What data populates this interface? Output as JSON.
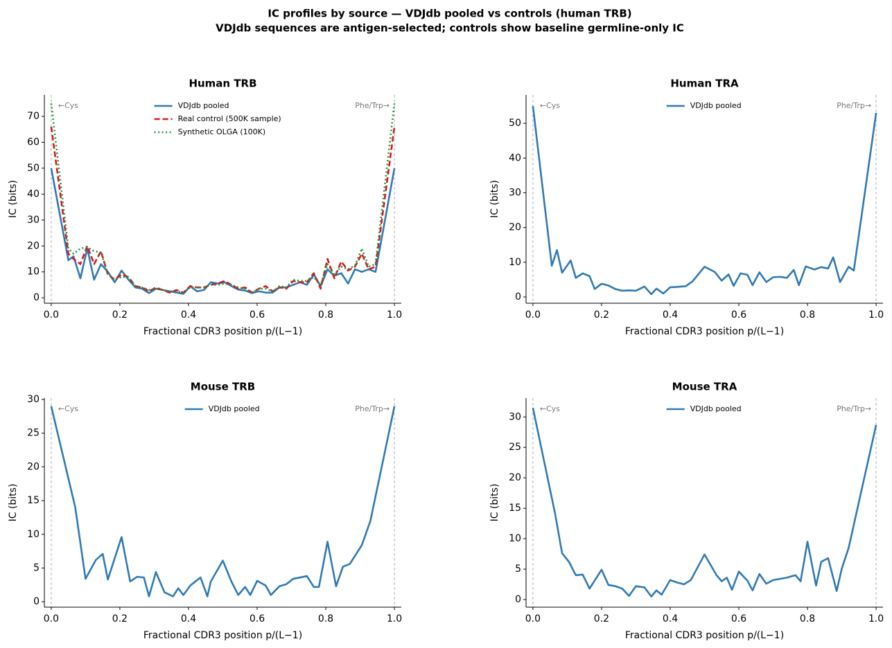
{
  "title": "IC profiles by source — VDJdb pooled vs controls (human TRB)",
  "subtitle": "VDJdb sequences are antigen-selected; controls show baseline germline-only IC",
  "chart_data": [
    {
      "type": "line",
      "title": "Human TRB",
      "xlabel": "Fractional CDR3 position  p/(L−1)",
      "ylabel": "IC (bits)",
      "annotations": [
        "←Cys",
        "Phe/Trp→"
      ],
      "vlines": [
        0,
        1
      ],
      "legend": "upper center",
      "xlim": [
        -0.02,
        1.02
      ],
      "ylim": [
        -2.1,
        78.3
      ],
      "xticks": [
        {
          "value": 0,
          "label": "0.0"
        },
        0.2,
        0.4,
        0.6,
        0.8,
        {
          "value": 1,
          "label": "1.0"
        }
      ],
      "yticks": [
        0,
        10,
        20,
        30,
        40,
        50,
        60,
        70
      ],
      "x": [
        0,
        0.05,
        0.065,
        0.085,
        0.105,
        0.125,
        0.145,
        0.165,
        0.185,
        0.205,
        0.225,
        0.245,
        0.265,
        0.285,
        0.305,
        0.325,
        0.345,
        0.365,
        0.385,
        0.405,
        0.425,
        0.445,
        0.465,
        0.485,
        0.505,
        0.525,
        0.545,
        0.565,
        0.585,
        0.605,
        0.625,
        0.645,
        0.665,
        0.685,
        0.705,
        0.725,
        0.745,
        0.765,
        0.785,
        0.805,
        0.825,
        0.845,
        0.865,
        0.885,
        0.905,
        0.925,
        0.945,
        1.0
      ],
      "series": [
        {
          "name": "VDJdb pooled",
          "color": "#2f79b5",
          "linestyle": "solid",
          "values": [
            50,
            14.5,
            16,
            7.5,
            19,
            7,
            13,
            10,
            6,
            10.5,
            7,
            4,
            3.5,
            1.8,
            3.5,
            3,
            2.5,
            2,
            1.5,
            4.5,
            2.5,
            3,
            6,
            5.5,
            6,
            4.5,
            3.2,
            2.8,
            1.8,
            2.5,
            2,
            2,
            4,
            4,
            5,
            6,
            5,
            9,
            4.5,
            11,
            8.5,
            9.5,
            5.5,
            11,
            10,
            11,
            10,
            50
          ]
        },
        {
          "name": "Real control (500K sample)",
          "color": "#d7191c",
          "linestyle": "dashed",
          "values": [
            66,
            17,
            15,
            13,
            20,
            13,
            18,
            9,
            7,
            9,
            8,
            4.5,
            4,
            2.5,
            4,
            3,
            2,
            3,
            2,
            4.5,
            4,
            4,
            5,
            5.5,
            6.5,
            5,
            3.5,
            4,
            2,
            3.5,
            4.5,
            2.5,
            4,
            3.5,
            6.5,
            6,
            6,
            9.5,
            3.5,
            15,
            7.5,
            14,
            10.5,
            12,
            17,
            11,
            12,
            66
          ]
        },
        {
          "name": "Synthetic OLGA (100K)",
          "color": "#1a9641",
          "linestyle": "dotted",
          "values": [
            75,
            19,
            17,
            19,
            19.5,
            18,
            17.5,
            9,
            7,
            8,
            8,
            4.5,
            4,
            3,
            3.5,
            3,
            2.5,
            2.5,
            2,
            4,
            4,
            4,
            5,
            5,
            5.5,
            5,
            4,
            3.5,
            2,
            3.5,
            3.5,
            2.5,
            4.5,
            4,
            7,
            6.5,
            6.5,
            8,
            5,
            13,
            9,
            12,
            11,
            12.5,
            19,
            12,
            13,
            75
          ]
        }
      ]
    },
    {
      "type": "line",
      "title": "Human TRA",
      "xlabel": "Fractional CDR3 position  p/(L−1)",
      "ylabel": "IC (bits)",
      "annotations": [
        "←Cys",
        "Phe/Trp→"
      ],
      "vlines": [
        0,
        1
      ],
      "legend": "upper center",
      "xlim": [
        -0.02,
        1.02
      ],
      "ylim": [
        -1.8,
        58.2
      ],
      "xticks": [
        {
          "value": 0,
          "label": "0.0"
        },
        0.2,
        0.4,
        0.6,
        0.8,
        {
          "value": 1,
          "label": "1.0"
        }
      ],
      "yticks": [
        0,
        10,
        20,
        30,
        40,
        50
      ],
      "x": [
        0,
        0.055,
        0.07,
        0.085,
        0.11,
        0.125,
        0.145,
        0.165,
        0.18,
        0.2,
        0.22,
        0.24,
        0.26,
        0.28,
        0.3,
        0.325,
        0.345,
        0.36,
        0.38,
        0.4,
        0.42,
        0.445,
        0.465,
        0.5,
        0.53,
        0.55,
        0.57,
        0.585,
        0.605,
        0.625,
        0.64,
        0.66,
        0.68,
        0.7,
        0.72,
        0.74,
        0.76,
        0.775,
        0.795,
        0.82,
        0.84,
        0.86,
        0.875,
        0.895,
        0.92,
        0.935,
        1.0
      ],
      "series": [
        {
          "name": "VDJdb pooled",
          "color": "#2f79b5",
          "linestyle": "solid",
          "values": [
            55,
            9,
            13.5,
            7,
            10.5,
            5.5,
            6.8,
            6,
            2.3,
            3.8,
            3.3,
            2.3,
            1.8,
            1.9,
            1.8,
            3,
            0.8,
            2.4,
            1,
            2.8,
            2.9,
            3.1,
            4.5,
            8.7,
            7.2,
            4.7,
            6.5,
            3.2,
            6.8,
            6.4,
            3.4,
            7.1,
            4.3,
            5.7,
            5.8,
            5.5,
            7.8,
            3.4,
            8.8,
            7.9,
            8.6,
            8.2,
            11.4,
            4.3,
            8.7,
            7.6,
            53
          ]
        }
      ]
    },
    {
      "type": "line",
      "title": "Mouse TRB",
      "xlabel": "Fractional CDR3 position  p/(L−1)",
      "ylabel": "IC (bits)",
      "annotations": [
        "←Cys",
        "Phe/Trp→"
      ],
      "vlines": [
        0,
        1
      ],
      "legend": "upper center",
      "xlim": [
        -0.02,
        1.02
      ],
      "ylim": [
        -0.8,
        30.2
      ],
      "xticks": [
        {
          "value": 0,
          "label": "0.0"
        },
        0.2,
        0.4,
        0.6,
        0.8,
        {
          "value": 1,
          "label": "1.0"
        }
      ],
      "yticks": [
        0,
        5,
        10,
        15,
        20,
        25,
        30
      ],
      "x": [
        0,
        0.07,
        0.1,
        0.13,
        0.15,
        0.165,
        0.205,
        0.23,
        0.25,
        0.27,
        0.285,
        0.305,
        0.33,
        0.355,
        0.37,
        0.385,
        0.405,
        0.435,
        0.455,
        0.465,
        0.5,
        0.525,
        0.545,
        0.565,
        0.58,
        0.6,
        0.625,
        0.64,
        0.665,
        0.685,
        0.705,
        0.745,
        0.765,
        0.78,
        0.805,
        0.83,
        0.85,
        0.87,
        0.905,
        0.93,
        1.0
      ],
      "series": [
        {
          "name": "VDJdb pooled",
          "color": "#2f79b5",
          "linestyle": "solid",
          "values": [
            29,
            14,
            3.4,
            6.2,
            7.1,
            3.3,
            9.6,
            3,
            3.7,
            3.6,
            0.8,
            4.4,
            1.4,
            0.8,
            2,
            1,
            2.4,
            3.6,
            0.8,
            3,
            6.1,
            3,
            1,
            2.2,
            1,
            3.1,
            2.4,
            1,
            2.3,
            2.6,
            3.4,
            3.8,
            2.2,
            2.2,
            8.9,
            2.3,
            5.2,
            5.6,
            8.4,
            12,
            29
          ]
        }
      ]
    },
    {
      "type": "line",
      "title": "Mouse TRA",
      "xlabel": "Fractional CDR3 position  p/(L−1)",
      "ylabel": "IC (bits)",
      "annotations": [
        "←Cys",
        "Phe/Trp→"
      ],
      "vlines": [
        0,
        1
      ],
      "legend": "upper center",
      "xlim": [
        -0.02,
        1.02
      ],
      "ylim": [
        -1.25,
        33.1
      ],
      "xticks": [
        {
          "value": 0,
          "label": "0.0"
        },
        0.2,
        0.4,
        0.6,
        0.8,
        {
          "value": 1,
          "label": "1.0"
        }
      ],
      "yticks": [
        0,
        5,
        10,
        15,
        20,
        25,
        30
      ],
      "x": [
        0,
        0.065,
        0.085,
        0.105,
        0.125,
        0.145,
        0.165,
        0.2,
        0.22,
        0.24,
        0.26,
        0.28,
        0.3,
        0.325,
        0.345,
        0.36,
        0.375,
        0.4,
        0.42,
        0.44,
        0.46,
        0.5,
        0.535,
        0.55,
        0.565,
        0.58,
        0.6,
        0.625,
        0.64,
        0.66,
        0.68,
        0.7,
        0.72,
        0.74,
        0.765,
        0.78,
        0.8,
        0.825,
        0.84,
        0.86,
        0.885,
        0.9,
        0.92,
        1.0
      ],
      "series": [
        {
          "name": "VDJdb pooled",
          "color": "#2f79b5",
          "linestyle": "solid",
          "values": [
            31.5,
            14,
            7.6,
            6.2,
            4,
            4.1,
            1.8,
            4.9,
            2.4,
            2.2,
            1.8,
            0.6,
            2.2,
            2,
            0.5,
            1.5,
            0.8,
            3.2,
            2.8,
            2.5,
            3.2,
            7.4,
            4,
            3,
            3.6,
            1.6,
            4.6,
            3.1,
            1.5,
            4.2,
            2.6,
            3.2,
            3.4,
            3.6,
            4,
            3,
            9.5,
            2.3,
            6.2,
            6.8,
            1.4,
            5.1,
            8.5,
            28.7
          ]
        }
      ]
    }
  ]
}
